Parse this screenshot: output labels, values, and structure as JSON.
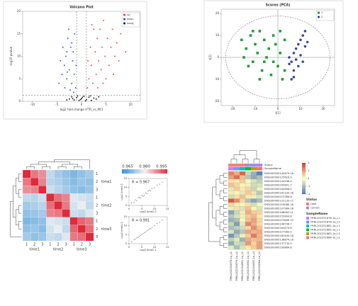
{
  "chart_data": [
    {
      "type": "scatter",
      "title": "Volcano Plot",
      "xlabel": "log2 Fold change (FTR_vs_MC)",
      "ylabel": "-log10 pvalue",
      "xlim": [
        -12,
        12
      ],
      "xticks": [
        -10,
        -5,
        0,
        5,
        10
      ],
      "ylim": [
        0,
        20
      ],
      "yticks": [
        0,
        5,
        10,
        15,
        20
      ],
      "vlines": [
        -1,
        1
      ],
      "hline": 1.3,
      "legend": "top-right",
      "series": [
        {
          "name": "up",
          "color": "#e8352f",
          "marker": "circle",
          "x": [
            1.2,
            1.5,
            2,
            2.3,
            2.8,
            3,
            3.2,
            3.5,
            3.8,
            4,
            4.2,
            4.5,
            4.8,
            5,
            5.3,
            5.6,
            6,
            6.3,
            6.8,
            7.2,
            7.6,
            8,
            1.8,
            2.5,
            1.3,
            3.3,
            4.4,
            6.5,
            9,
            2.1
          ],
          "values": [
            3,
            5,
            8,
            4,
            11,
            6,
            14,
            9,
            16,
            7,
            12,
            18,
            10,
            5,
            14,
            8,
            12,
            16,
            10,
            13,
            9,
            15,
            12,
            16,
            9,
            3,
            4,
            6,
            11,
            17
          ]
        },
        {
          "name": "down",
          "color": "#2a3fe0",
          "marker": "circle",
          "x": [
            -1.2,
            -1.5,
            -1.8,
            -2,
            -2.2,
            -2.5,
            -2.8,
            -3,
            -3.2,
            -3.5,
            -3.8,
            -4,
            -4.3,
            -1.4,
            -1.7,
            -2.3,
            -2.6,
            -3.4,
            -4.6,
            -1.1,
            -2,
            -3,
            -1.6,
            -2.9
          ],
          "values": [
            3,
            6,
            9,
            4,
            12,
            7,
            14,
            5,
            10,
            8,
            12,
            6,
            9,
            15,
            11,
            2.5,
            16,
            3,
            4,
            8,
            13,
            11,
            2,
            6.5
          ]
        },
        {
          "name": "nosig",
          "color": "#111111",
          "marker": "circle",
          "x": [
            -2.5,
            -2,
            -1.5,
            -1,
            -0.5,
            0,
            0.5,
            1,
            1.5,
            2,
            2.5,
            3,
            -0.8,
            0.8,
            -1.8,
            1.8,
            0.2,
            -0.2,
            3.5,
            -3
          ],
          "values": [
            0.5,
            1,
            0.3,
            0.8,
            0.2,
            0.6,
            1.1,
            0.4,
            0.9,
            0.2,
            0.7,
            0.5,
            1.2,
            0.1,
            0.6,
            1.2,
            0.9,
            0.4,
            1,
            0.3
          ]
        }
      ]
    },
    {
      "type": "scatter",
      "title": "Scores (PCA)",
      "xlabel": "t[1]",
      "ylabel": "t[2]",
      "xlim": [
        -25,
        25
      ],
      "xticks": [
        -20,
        -10,
        0,
        10,
        20
      ],
      "ylim": [
        -22,
        22
      ],
      "yticks": [
        -20,
        -10,
        0,
        10,
        20
      ],
      "ellipse": true,
      "zero_lines": true,
      "legend": "top-right",
      "series": [
        {
          "name": "1",
          "color": "#1f9e3a",
          "marker": "square",
          "x": [
            -16,
            -14,
            -12,
            -11,
            -10,
            -9,
            -8,
            -7,
            -6,
            -5,
            -4,
            -3,
            -2,
            -1,
            0,
            1,
            2,
            3,
            -13,
            -15,
            -6,
            -8,
            -2,
            1,
            3,
            -11
          ],
          "values": [
            8,
            4,
            10,
            -2,
            6,
            2,
            12,
            -6,
            8,
            0,
            4,
            -8,
            10,
            6,
            -4,
            2,
            -10,
            8,
            -4,
            0,
            -2,
            -10,
            -2,
            12,
            -6,
            12
          ]
        },
        {
          "name": "2",
          "color": "#1c2a87",
          "marker": "circle",
          "x": [
            5,
            6,
            7,
            7,
            8,
            8,
            9,
            9,
            10,
            10,
            11,
            11,
            12,
            12,
            13,
            6,
            7,
            5
          ],
          "values": [
            0,
            -2,
            2,
            -6,
            4,
            -1,
            6,
            -4,
            8,
            1,
            10,
            -2,
            5,
            12,
            7,
            -10,
            -9,
            -3
          ]
        }
      ]
    },
    {
      "type": "heatmap",
      "dendrogram": true,
      "categories": [
        "1",
        "2",
        "3",
        "1",
        "2",
        "3",
        "1",
        "2",
        "3"
      ],
      "col_groups": [
        "time1",
        "time2",
        "time3"
      ],
      "rows": [
        "1",
        "2",
        "3",
        "1",
        "2",
        "3",
        "1",
        "2",
        "3"
      ],
      "row_groups": [
        "time1",
        "time2",
        "time3"
      ],
      "values": [
        [
          1,
          0.992,
          0.99,
          0.975,
          0.972,
          0.97,
          0.968,
          0.97,
          0.972
        ],
        [
          0.992,
          1,
          0.991,
          0.974,
          0.973,
          0.971,
          0.969,
          0.971,
          0.97
        ],
        [
          0.99,
          0.991,
          1,
          0.976,
          0.974,
          0.972,
          0.97,
          0.969,
          0.971
        ],
        [
          0.975,
          0.974,
          0.976,
          1,
          0.993,
          0.991,
          0.978,
          0.977,
          0.976
        ],
        [
          0.972,
          0.973,
          0.974,
          0.993,
          1,
          0.992,
          0.977,
          0.979,
          0.975
        ],
        [
          0.97,
          0.971,
          0.972,
          0.991,
          0.992,
          1,
          0.976,
          0.975,
          0.978
        ],
        [
          0.968,
          0.969,
          0.97,
          0.978,
          0.977,
          0.976,
          1,
          0.994,
          0.992
        ],
        [
          0.97,
          0.971,
          0.969,
          0.977,
          0.979,
          0.975,
          0.994,
          1,
          0.993
        ],
        [
          0.972,
          0.97,
          0.971,
          0.976,
          0.975,
          0.978,
          0.992,
          0.993,
          1
        ]
      ],
      "zlim": [
        0.96,
        1
      ],
      "colors": [
        "#2f8fd8",
        "#f2f2f2",
        "#e0293a"
      ],
      "colorbar": "top",
      "colorbar_ticks": [
        0.965,
        {
          "value": 0.98,
          "label": "0.980"
        },
        0.995
      ]
    },
    {
      "type": "scatter",
      "xlabel": "Log2 time2-3",
      "ylabel": "Log2 time3-3",
      "annotation": "R = 0.967",
      "xlim": [
        0,
        15
      ],
      "xticks": [
        0,
        5,
        10,
        15
      ],
      "ylim": [
        0,
        15
      ],
      "yticks": [
        0,
        5,
        10,
        15
      ],
      "series": [
        {
          "color": "#7a7a7a",
          "marker": "point",
          "x": [
            1,
            2,
            2.5,
            3,
            4,
            4.5,
            5,
            6,
            6.5,
            7,
            8,
            8.5,
            9,
            10,
            11,
            12,
            13,
            3.5,
            5.5,
            7.5
          ],
          "values": [
            1.4,
            1.8,
            3.1,
            2.6,
            4.5,
            4.1,
            5.6,
            5.7,
            7,
            6.6,
            8.5,
            8.1,
            9.4,
            9.8,
            11.3,
            11.8,
            12.9,
            4.2,
            5.1,
            8
          ]
        }
      ]
    },
    {
      "type": "scatter",
      "xlabel": "Log2 time2-1",
      "ylabel": "Log2 time1-3",
      "annotation": "R = 0.991",
      "xlim": [
        0,
        15
      ],
      "xticks": [
        0,
        5,
        10,
        15
      ],
      "ylim": [
        0,
        15
      ],
      "yticks": [
        0,
        5,
        10,
        15
      ],
      "series": [
        {
          "color": "#7a7a7a",
          "marker": "point",
          "x": [
            1,
            2,
            2.5,
            3,
            4,
            4.5,
            5,
            6,
            6.5,
            7,
            8,
            8.5,
            9,
            10,
            11,
            12,
            13,
            3.5,
            5.5,
            7.5
          ],
          "values": [
            1.1,
            2.2,
            2.6,
            3.2,
            4.1,
            4.6,
            5.1,
            6.2,
            6.4,
            7.1,
            8.2,
            8.4,
            9.1,
            10.1,
            11.2,
            11.9,
            13.1,
            3.4,
            5.6,
            7.6
          ]
        }
      ]
    },
    {
      "type": "heatmap",
      "dendrogram": true,
      "xlabel_rotation": 90,
      "categories": [
        "FRRL202251676-1a_L1",
        "FRRL202251676-1a_L2",
        "FRRL202251681-1a_L1",
        "FRRL202251682-1a_L1",
        "FRRL202251683-1a_L3",
        "FRRL202251684-1a_L2"
      ],
      "rows": [
        "ENSG00000140679.18",
        "ENSG00000125629.9",
        "ENSG00000124936.4",
        "ENSG00000205801.7",
        "ENSG00000162896.5",
        "ENSG00000181143.18",
        "ENSG00000072366.8",
        "ENSG00000122133.17",
        "ENSG00000229080.18",
        "ENSG00000107984.18",
        "ENSG00000186963.11",
        "ENSG00000152894.8",
        "ENSG00000073869.15",
        "ENSG00000146798.7",
        "ENSG00000204479.8",
        "ENSG00000227983.9",
        "ENSG00000182634.18",
        "ENSG00000136874.18",
        "ENSG00000137734.5",
        "ENSG00000230884.8"
      ],
      "values": [
        [
          1.2,
          0.8,
          1.5,
          -0.6,
          -1.1,
          -1.8
        ],
        [
          0.9,
          1.4,
          0.6,
          -0.8,
          -1.2,
          -0.9
        ],
        [
          0.3,
          0.2,
          0.5,
          0.1,
          -0.4,
          -0.7
        ],
        [
          0.6,
          0.4,
          0.1,
          -0.2,
          -0.5,
          -0.4
        ],
        [
          -0.3,
          0.5,
          0.2,
          0.4,
          -0.6,
          -0.2
        ],
        [
          0.2,
          0.1,
          -0.3,
          0.5,
          0.3,
          -0.8
        ],
        [
          -0.5,
          0.3,
          0.6,
          0.2,
          -0.2,
          -0.4
        ],
        [
          1.6,
          1.1,
          0.4,
          -0.9,
          -1.3,
          -0.9
        ],
        [
          0.4,
          -0.2,
          0.1,
          0.3,
          -0.5,
          -0.1
        ],
        [
          -0.2,
          0.3,
          -0.4,
          0.6,
          0.1,
          -0.4
        ],
        [
          -1.3,
          -0.6,
          0.2,
          0.8,
          0.5,
          0.4
        ],
        [
          -0.8,
          -0.4,
          -0.2,
          0.5,
          0.7,
          0.2
        ],
        [
          -1.1,
          -0.9,
          0.1,
          0.6,
          0.9,
          0.4
        ],
        [
          -0.6,
          -1.4,
          -0.3,
          1.2,
          0.8,
          0.3
        ],
        [
          -0.9,
          -0.7,
          -0.5,
          0.4,
          1.1,
          0.6
        ],
        [
          -0.4,
          -1.2,
          -0.8,
          0.9,
          0.7,
          0.8
        ],
        [
          -1.5,
          -0.8,
          -0.2,
          0.5,
          1.3,
          0.7
        ],
        [
          -0.7,
          -0.3,
          -1.1,
          0.8,
          0.6,
          0.7
        ],
        [
          -1.2,
          -0.5,
          -0.6,
          1,
          0.4,
          0.9
        ],
        [
          -0.3,
          -0.9,
          -0.4,
          0.2,
          0.5,
          0.9
        ]
      ],
      "zlim": [
        -2,
        2
      ],
      "colors": [
        "#4575b4",
        "#ffffbf",
        "#d73027"
      ],
      "colorbar": "right",
      "colorbar_ticks": [
        -2,
        -1,
        0,
        1,
        2
      ],
      "col_annotations": [
        {
          "name": "Status",
          "values": [
            "case",
            "case",
            "case",
            "control",
            "control",
            "control"
          ],
          "levels": [
            "case",
            "control"
          ],
          "colors": [
            "#f08080",
            "#a58be0"
          ]
        },
        {
          "name": "SampleName",
          "levels": [
            "FRRL202251676-1a_L1",
            "FRRL202251676-1a_L2",
            "FRRL202251681-1a_L1",
            "FRRL202251682-1a_L1",
            "FRRL202251683-1a_L3",
            "FRRL202251684-1a_L2"
          ],
          "colors": [
            "#c77cff",
            "#619cff",
            "#00bfc4",
            "#00ba38",
            "#b79f00",
            "#f8766d"
          ]
        }
      ]
    }
  ]
}
